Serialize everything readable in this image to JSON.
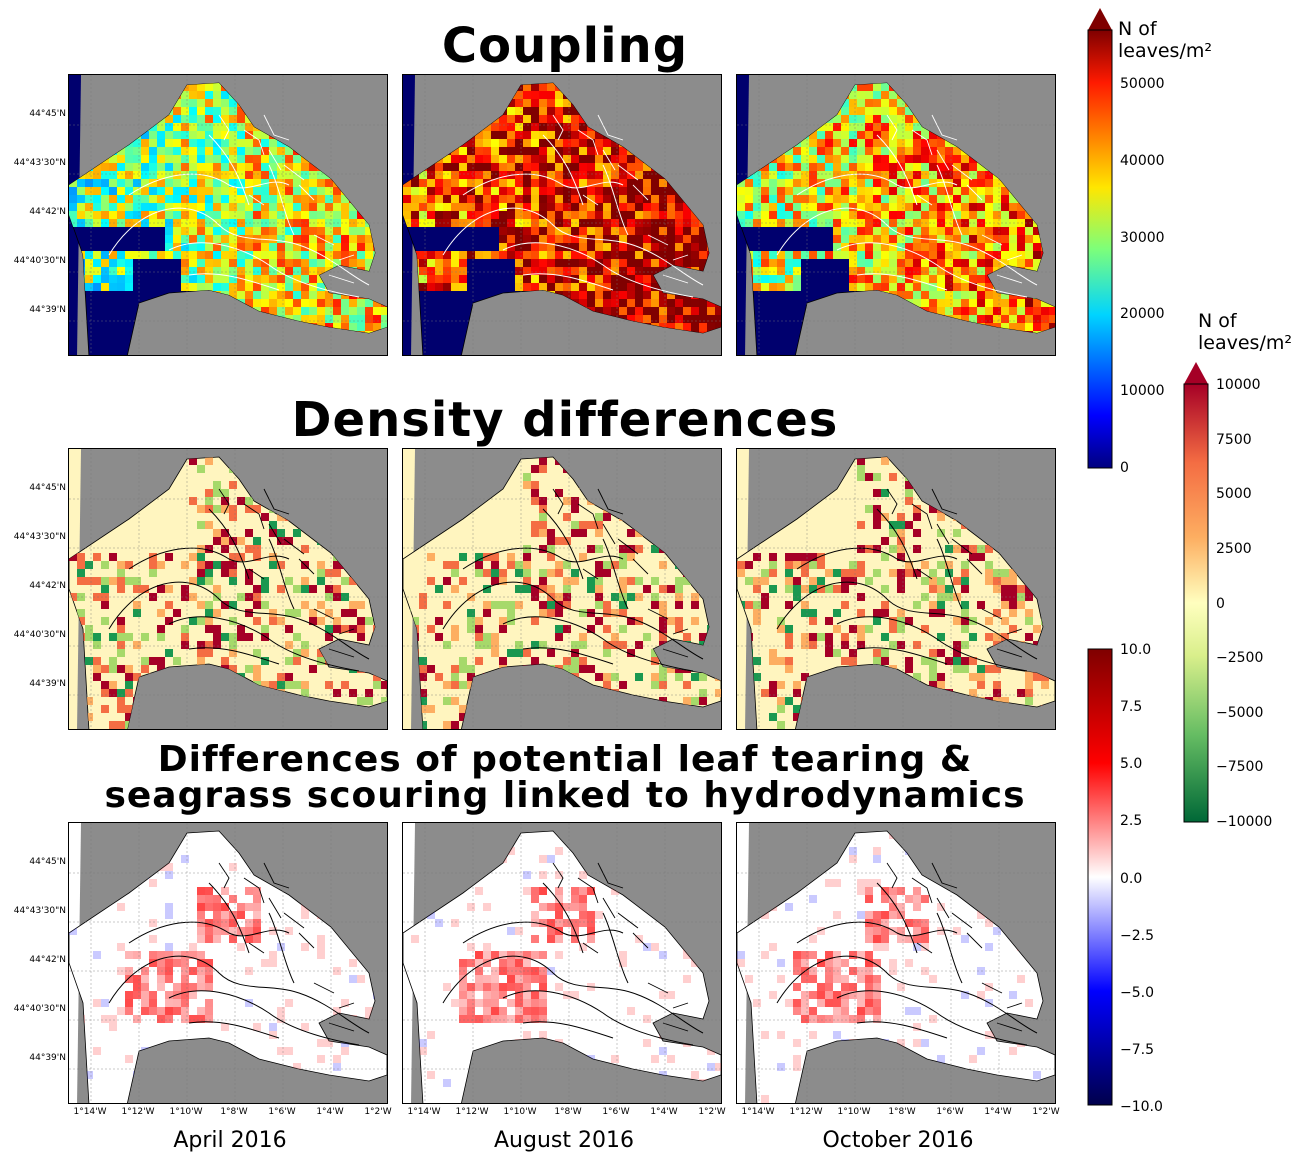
{
  "titles": {
    "coupling": "Coupling",
    "density": "Density differences",
    "tearing_line1": "Differences of potential leaf tearing &",
    "tearing_line2": "seagrass scouring linked to hydrodynamics"
  },
  "months": [
    "April 2016",
    "August 2016",
    "October 2016"
  ],
  "lat_ticks": [
    "44°45'N",
    "44°43'30\"N",
    "44°42'N",
    "44°40'30\"N",
    "44°39'N"
  ],
  "lon_ticks": [
    "1°14'W",
    "1°12'W",
    "1°10'W",
    "1°8'W",
    "1°6'W",
    "1°4'W",
    "1°2'W"
  ],
  "colorbars": {
    "coupling": {
      "label_line1": "N of",
      "label_line2": "leaves/m²",
      "ticks": [
        "50000",
        "40000",
        "30000",
        "20000",
        "10000",
        "0"
      ],
      "range": [
        0,
        55000
      ],
      "colormap": "jet",
      "extend": "max"
    },
    "density": {
      "label_line1": "N of",
      "label_line2": "leaves/m²",
      "ticks": [
        "10000",
        "7500",
        "5000",
        "2500",
        "0",
        "−2500",
        "−5000",
        "−7500",
        "−10000"
      ],
      "range": [
        -10000,
        10000
      ],
      "colormap": "RdYlGn_r",
      "extend": "max"
    },
    "tearing": {
      "ticks": [
        "10.0",
        "7.5",
        "5.0",
        "2.5",
        "0.0",
        "−2.5",
        "−5.0",
        "−7.5",
        "−10.0"
      ],
      "range": [
        -10,
        10
      ],
      "colormap": "seismic"
    }
  },
  "colors": {
    "land": "#8c8c8c",
    "water_coupling": "#00006e",
    "background_density": "#fff5bf",
    "background_tearing": "#ffffff"
  },
  "chart_data": [
    {
      "type": "heatmap",
      "title": "Coupling",
      "panels": [
        "April 2016",
        "August 2016",
        "October 2016"
      ],
      "colorbar_label": "N of leaves/m²",
      "vmin": 0,
      "vmax": 55000,
      "typical_values": [
        32000,
        48000,
        38000
      ]
    },
    {
      "type": "heatmap",
      "title": "Density differences",
      "panels": [
        "April 2016",
        "August 2016",
        "October 2016"
      ],
      "colorbar_label": "N of leaves/m²",
      "vmin": -10000,
      "vmax": 10000
    },
    {
      "type": "heatmap",
      "title": "Differences of potential leaf tearing & seagrass scouring linked to hydrodynamics",
      "panels": [
        "April 2016",
        "August 2016",
        "October 2016"
      ],
      "vmin": -10,
      "vmax": 10
    }
  ]
}
